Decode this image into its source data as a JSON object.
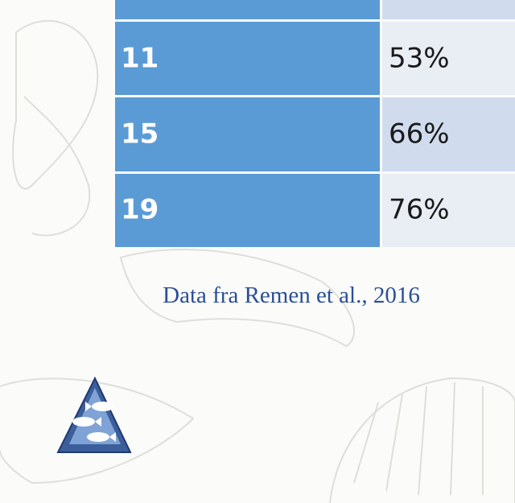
{
  "table": {
    "rows": [
      [
        "11",
        "53%"
      ],
      [
        "15",
        "66%"
      ],
      [
        "19",
        "76%"
      ]
    ]
  },
  "source": "Data fra Remen et al., 2016"
}
